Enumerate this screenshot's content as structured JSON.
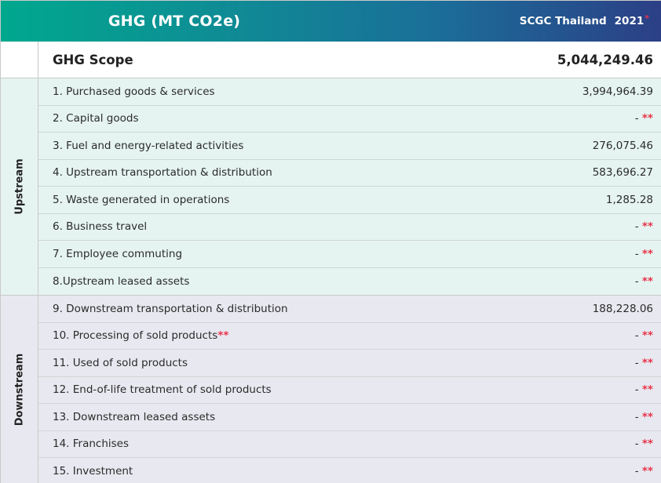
{
  "header": {
    "title": "GHG (MT CO2e)",
    "company": "SCGC Thailand",
    "year": "2021",
    "year_mark": "*"
  },
  "scope": {
    "label": "GHG Scope",
    "value": "5,044,249.46"
  },
  "note_mark": "**",
  "upstream": {
    "label": "Upstream",
    "rows": [
      {
        "label": "1. Purchased goods & services",
        "value": "3,994,964.39"
      },
      {
        "label": "2. Capital goods",
        "value": "-"
      },
      {
        "label": "3. Fuel and energy-related activities",
        "value": "276,075.46"
      },
      {
        "label": "4. Upstream transportation & distribution",
        "value": "583,696.27"
      },
      {
        "label": "5. Waste generated in operations",
        "value": "1,285.28"
      },
      {
        "label": "6. Business travel",
        "value": "-"
      },
      {
        "label": "7. Employee commuting",
        "value": "-"
      },
      {
        "label": "8.Upstream leased assets",
        "value": "-"
      }
    ]
  },
  "downstream": {
    "label": "Downstream",
    "rows": [
      {
        "label": "9. Downstream transportation & distribution",
        "value": "188,228.06"
      },
      {
        "label": "10. Processing of sold products",
        "label_mark": "**",
        "value": "-"
      },
      {
        "label": "11. Used of sold products",
        "value": "-"
      },
      {
        "label": "12. End-of-life treatment of sold products",
        "value": "-"
      },
      {
        "label": "13. Downstream leased assets",
        "value": "-"
      },
      {
        "label": "14. Franchises",
        "value": "-"
      },
      {
        "label": "15. Investment",
        "value": "-"
      }
    ]
  }
}
